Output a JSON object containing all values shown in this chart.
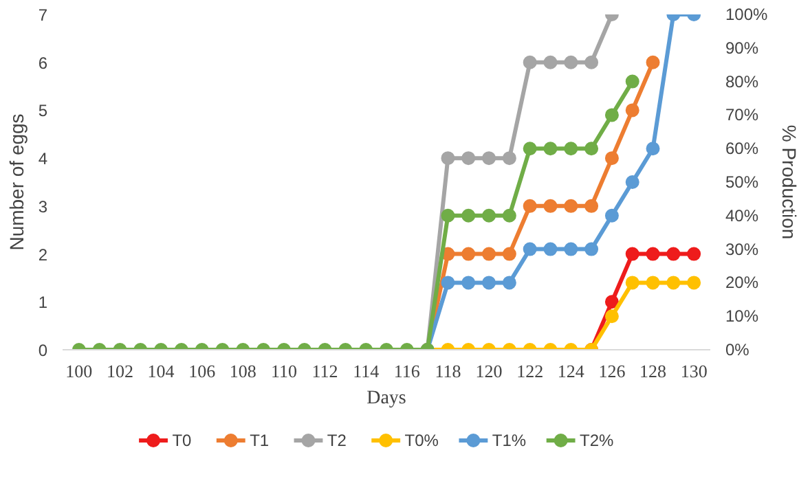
{
  "chart_data": {
    "type": "line",
    "xlabel": "Days",
    "ylabel": "Number of eggs",
    "y2label": "% Production",
    "x": [
      100,
      101,
      102,
      103,
      104,
      105,
      106,
      107,
      108,
      109,
      110,
      111,
      112,
      113,
      114,
      115,
      116,
      117,
      118,
      119,
      120,
      121,
      122,
      123,
      124,
      125,
      126,
      127,
      128,
      129,
      130
    ],
    "xlim": [
      99.2,
      130.8
    ],
    "xticks": [
      100,
      102,
      104,
      106,
      108,
      110,
      112,
      114,
      116,
      118,
      120,
      122,
      124,
      126,
      128,
      130
    ],
    "ylim": [
      0,
      7
    ],
    "yticks": [
      0,
      1,
      2,
      3,
      4,
      5,
      6,
      7
    ],
    "y2lim": [
      0,
      100
    ],
    "y2ticks": [
      {
        "value": 0,
        "label": "0%"
      },
      {
        "value": 10,
        "label": "10%"
      },
      {
        "value": 20,
        "label": "20%"
      },
      {
        "value": 30,
        "label": "30%"
      },
      {
        "value": 40,
        "label": "40%"
      },
      {
        "value": 50,
        "label": "50%"
      },
      {
        "value": 60,
        "label": "60%"
      },
      {
        "value": 70,
        "label": "70%"
      },
      {
        "value": 80,
        "label": "80%"
      },
      {
        "value": 90,
        "label": "90%"
      },
      {
        "value": 100,
        "label": "100%"
      }
    ],
    "grid": false,
    "legend": "bottom",
    "marker": "circle",
    "line_style": "solid",
    "series": [
      {
        "name": "T0",
        "color": "#ee1c1c",
        "values": [
          null,
          null,
          null,
          null,
          null,
          null,
          null,
          null,
          null,
          null,
          null,
          null,
          null,
          null,
          null,
          null,
          null,
          null,
          null,
          null,
          null,
          null,
          null,
          null,
          null,
          0,
          1,
          2,
          2,
          2,
          2
        ]
      },
      {
        "name": "T1",
        "color": "#ed7d31",
        "values": [
          null,
          null,
          null,
          null,
          null,
          null,
          null,
          null,
          null,
          null,
          null,
          null,
          null,
          null,
          null,
          null,
          null,
          0,
          2,
          2,
          2,
          2,
          3,
          3,
          3,
          3,
          4,
          5,
          6,
          null,
          null
        ]
      },
      {
        "name": "T2",
        "color": "#a5a5a5",
        "values": [
          null,
          null,
          null,
          null,
          null,
          null,
          null,
          null,
          null,
          null,
          null,
          null,
          null,
          null,
          null,
          null,
          null,
          0,
          4,
          4,
          4,
          4,
          6,
          6,
          6,
          6,
          7,
          null,
          null,
          null,
          null
        ]
      },
      {
        "name": "T0%",
        "color": "#ffc000",
        "axis": "y2",
        "values": [
          null,
          null,
          null,
          null,
          null,
          null,
          null,
          null,
          null,
          null,
          null,
          null,
          null,
          null,
          null,
          null,
          null,
          0,
          0,
          0,
          0,
          0,
          0,
          0,
          0,
          0,
          10,
          20,
          20,
          20,
          20
        ]
      },
      {
        "name": "T1%",
        "color": "#5b9bd5",
        "axis": "y2",
        "values": [
          null,
          null,
          null,
          null,
          null,
          null,
          null,
          null,
          null,
          null,
          null,
          null,
          null,
          null,
          null,
          null,
          null,
          0,
          20,
          20,
          20,
          20,
          30,
          30,
          30,
          30,
          40,
          50,
          60,
          100,
          100
        ]
      },
      {
        "name": "T2%",
        "color": "#70ad47",
        "axis": "y2",
        "values": [
          0,
          0,
          0,
          0,
          0,
          0,
          0,
          0,
          0,
          0,
          0,
          0,
          0,
          0,
          0,
          0,
          0,
          0,
          40,
          40,
          40,
          40,
          60,
          60,
          60,
          60,
          70,
          80,
          null,
          null,
          null
        ]
      }
    ]
  }
}
